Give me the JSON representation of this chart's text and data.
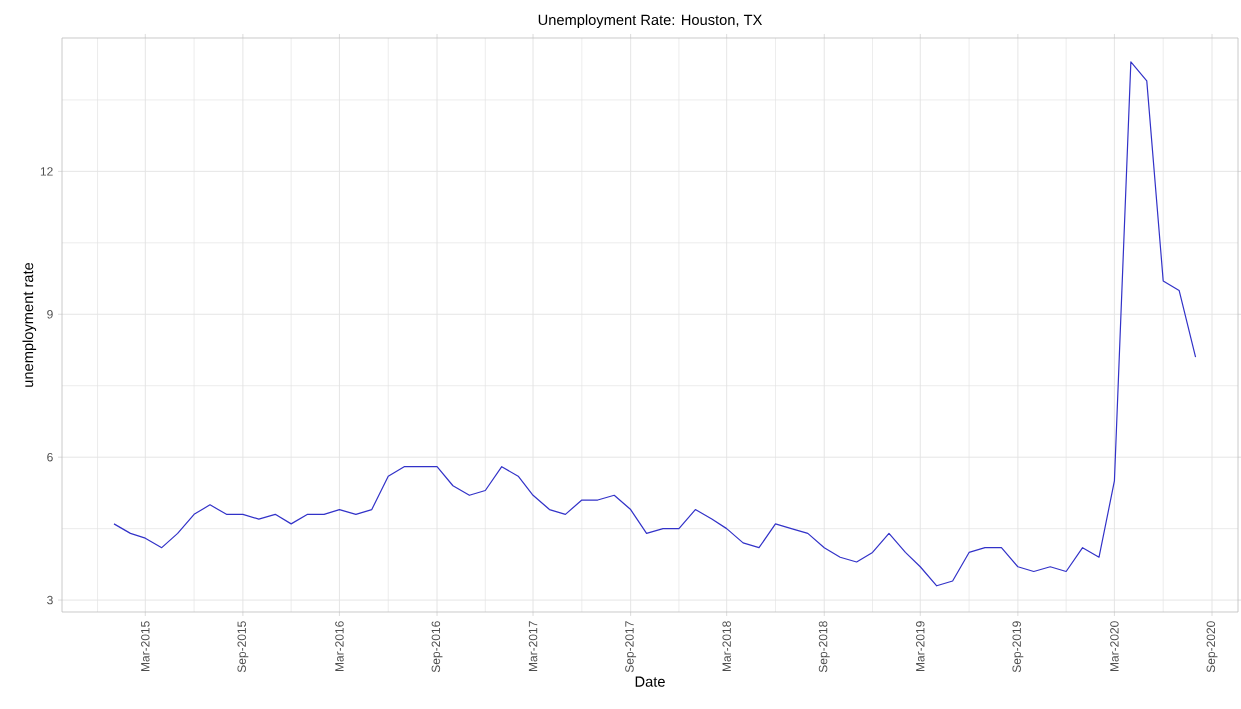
{
  "chart_data": {
    "type": "line",
    "title": "Unemployment Rate: Houston, TX",
    "xlabel": "Date",
    "ylabel": "unemployment rate",
    "x": [
      "2015-01",
      "2015-02",
      "2015-03",
      "2015-04",
      "2015-05",
      "2015-06",
      "2015-07",
      "2015-08",
      "2015-09",
      "2015-10",
      "2015-11",
      "2015-12",
      "2016-01",
      "2016-02",
      "2016-03",
      "2016-04",
      "2016-05",
      "2016-06",
      "2016-07",
      "2016-08",
      "2016-09",
      "2016-10",
      "2016-11",
      "2016-12",
      "2017-01",
      "2017-02",
      "2017-03",
      "2017-04",
      "2017-05",
      "2017-06",
      "2017-07",
      "2017-08",
      "2017-09",
      "2017-10",
      "2017-11",
      "2017-12",
      "2018-01",
      "2018-02",
      "2018-03",
      "2018-04",
      "2018-05",
      "2018-06",
      "2018-07",
      "2018-08",
      "2018-09",
      "2018-10",
      "2018-11",
      "2018-12",
      "2019-01",
      "2019-02",
      "2019-03",
      "2019-04",
      "2019-05",
      "2019-06",
      "2019-07",
      "2019-08",
      "2019-09",
      "2019-10",
      "2019-11",
      "2019-12",
      "2020-01",
      "2020-02",
      "2020-03",
      "2020-04",
      "2020-05",
      "2020-06",
      "2020-07",
      "2020-08"
    ],
    "series": [
      {
        "color": "#3232c8",
        "values": [
          4.6,
          4.4,
          4.3,
          4.1,
          4.4,
          4.8,
          5.0,
          4.8,
          4.8,
          4.7,
          4.8,
          4.6,
          4.8,
          4.8,
          4.9,
          4.8,
          4.9,
          5.6,
          5.8,
          5.8,
          5.8,
          5.4,
          5.2,
          5.3,
          5.8,
          5.6,
          5.2,
          4.9,
          4.8,
          5.1,
          5.1,
          5.2,
          4.9,
          4.4,
          4.5,
          4.5,
          4.9,
          4.7,
          4.5,
          4.2,
          4.1,
          4.6,
          4.5,
          4.4,
          4.1,
          3.9,
          3.8,
          4.0,
          4.4,
          4.0,
          3.7,
          3.3,
          3.4,
          4.0,
          4.1,
          4.1,
          3.7,
          3.6,
          3.7,
          3.6,
          4.1,
          3.9,
          5.5,
          14.3,
          13.9,
          9.7,
          9.5,
          8.1
        ]
      }
    ],
    "xlim": [
      "2014-09-25",
      "2020-10-20"
    ],
    "ylim": [
      2.75,
      14.8
    ],
    "xticks": [
      {
        "value": "2014-12-01",
        "label": null
      },
      {
        "value": "2015-03-01",
        "label": "Mar-2015"
      },
      {
        "value": "2015-06-01",
        "label": null
      },
      {
        "value": "2015-09-01",
        "label": "Sep-2015"
      },
      {
        "value": "2015-12-01",
        "label": null
      },
      {
        "value": "2016-03-01",
        "label": "Mar-2016"
      },
      {
        "value": "2016-06-01",
        "label": null
      },
      {
        "value": "2016-09-01",
        "label": "Sep-2016"
      },
      {
        "value": "2016-12-01",
        "label": null
      },
      {
        "value": "2017-03-01",
        "label": "Mar-2017"
      },
      {
        "value": "2017-06-01",
        "label": null
      },
      {
        "value": "2017-09-01",
        "label": "Sep-2017"
      },
      {
        "value": "2017-12-01",
        "label": null
      },
      {
        "value": "2018-03-01",
        "label": "Mar-2018"
      },
      {
        "value": "2018-06-01",
        "label": null
      },
      {
        "value": "2018-09-01",
        "label": "Sep-2018"
      },
      {
        "value": "2018-12-01",
        "label": null
      },
      {
        "value": "2019-03-01",
        "label": "Mar-2019"
      },
      {
        "value": "2019-06-01",
        "label": null
      },
      {
        "value": "2019-09-01",
        "label": "Sep-2019"
      },
      {
        "value": "2019-12-01",
        "label": null
      },
      {
        "value": "2020-03-01",
        "label": "Mar-2020"
      },
      {
        "value": "2020-06-01",
        "label": null
      },
      {
        "value": "2020-09-01",
        "label": "Sep-2020"
      }
    ],
    "yticks": [
      3,
      {
        "value": 4.5,
        "label": null
      },
      6,
      {
        "value": 7.5,
        "label": null
      },
      9,
      {
        "value": 10.5,
        "label": null
      },
      12,
      {
        "value": 13.5,
        "label": null
      }
    ],
    "grid": true
  }
}
